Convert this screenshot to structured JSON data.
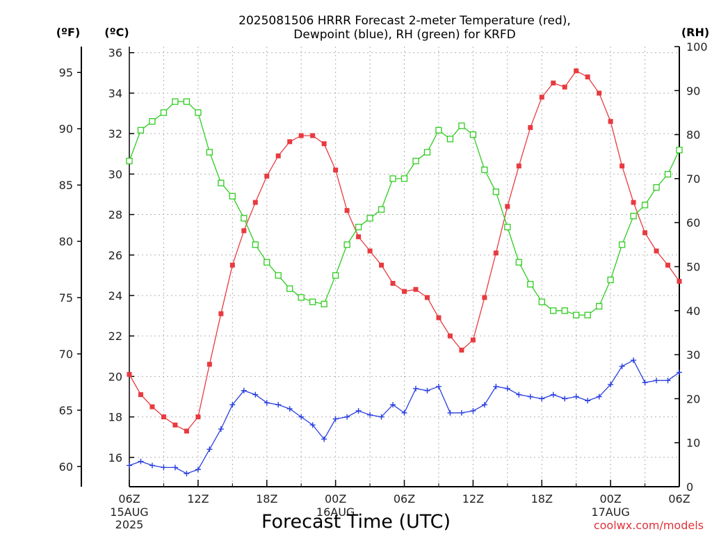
{
  "chart_data": {
    "type": "line",
    "title_line1": "2025081506 HRRR Forecast 2-meter Temperature (red),",
    "title_line2": "Dewpoint (blue), RH (green) for KRFD",
    "unit_f": "(ºF)",
    "unit_c": "(ºC)",
    "unit_rh": "(RH)",
    "xlabel": "Forecast Time (UTC)",
    "credit": "coolwx.com/models",
    "x_hours_range": [
      0,
      48
    ],
    "c_range": [
      14.55,
      36.3
    ],
    "f_range": [
      58.2,
      97.3
    ],
    "rh_range": [
      0,
      100
    ],
    "c_ticks": [
      "16",
      "18",
      "20",
      "22",
      "24",
      "26",
      "28",
      "30",
      "32",
      "34",
      "36"
    ],
    "f_ticks": [
      "60",
      "65",
      "70",
      "75",
      "80",
      "85",
      "90",
      "95"
    ],
    "rh_ticks": [
      "0",
      "10",
      "20",
      "30",
      "40",
      "50",
      "60",
      "70",
      "80",
      "90",
      "100"
    ],
    "x_ticks": [
      {
        "hour": 0,
        "label": "06Z",
        "sub1": "15AUG",
        "sub2": "2025"
      },
      {
        "hour": 6,
        "label": "12Z"
      },
      {
        "hour": 12,
        "label": "18Z"
      },
      {
        "hour": 18,
        "label": "00Z",
        "sub1": "16AUG"
      },
      {
        "hour": 24,
        "label": "06Z"
      },
      {
        "hour": 30,
        "label": "12Z"
      },
      {
        "hour": 36,
        "label": "18Z"
      },
      {
        "hour": 42,
        "label": "00Z",
        "sub1": "17AUG"
      },
      {
        "hour": 48,
        "label": "06Z"
      }
    ],
    "grid": true,
    "series": [
      {
        "name": "Temperature",
        "unit": "°C",
        "color": "#e83a3f",
        "marker": "filled-square",
        "values": [
          20.1,
          19.1,
          18.5,
          18.0,
          17.6,
          17.3,
          18.0,
          20.6,
          23.1,
          25.5,
          27.2,
          28.6,
          29.9,
          30.9,
          31.6,
          31.9,
          31.9,
          31.5,
          30.2,
          28.2,
          26.9,
          26.2,
          25.5,
          24.6,
          24.2,
          24.3,
          23.9,
          22.9,
          22.0,
          21.3,
          21.8,
          23.9,
          26.1,
          28.4,
          30.4,
          32.3,
          33.8,
          34.5,
          34.3,
          35.1,
          34.8,
          34.0,
          32.6,
          30.4,
          28.6,
          27.1,
          26.2,
          25.5,
          24.7
        ]
      },
      {
        "name": "Dewpoint",
        "unit": "°C",
        "color": "#2a3fe0",
        "marker": "plus",
        "values": [
          15.6,
          15.8,
          15.6,
          15.5,
          15.5,
          15.2,
          15.4,
          16.4,
          17.4,
          18.6,
          19.3,
          19.1,
          18.7,
          18.6,
          18.4,
          18.0,
          17.6,
          16.9,
          17.9,
          18.0,
          18.3,
          18.1,
          18.0,
          18.6,
          18.2,
          19.4,
          19.3,
          19.5,
          18.2,
          18.2,
          18.3,
          18.6,
          19.5,
          19.4,
          19.1,
          19.0,
          18.9,
          19.1,
          18.9,
          19.0,
          18.8,
          19.0,
          19.6,
          20.5,
          20.8,
          19.7,
          19.8,
          19.8,
          20.2
        ]
      },
      {
        "name": "RH",
        "unit": "%",
        "color": "#2ecc1f",
        "marker": "open-square",
        "values": [
          74,
          81,
          83,
          85,
          87.5,
          87.5,
          85,
          76,
          69,
          66,
          61,
          55,
          51,
          48,
          45,
          43,
          42,
          41.5,
          48,
          55,
          59,
          61,
          63,
          70,
          70,
          74,
          76,
          81,
          79,
          82,
          80,
          72,
          67,
          59,
          51,
          46,
          42,
          40,
          40,
          39,
          39,
          41,
          47,
          55,
          61.5,
          64,
          68,
          71,
          76.5
        ]
      }
    ]
  }
}
